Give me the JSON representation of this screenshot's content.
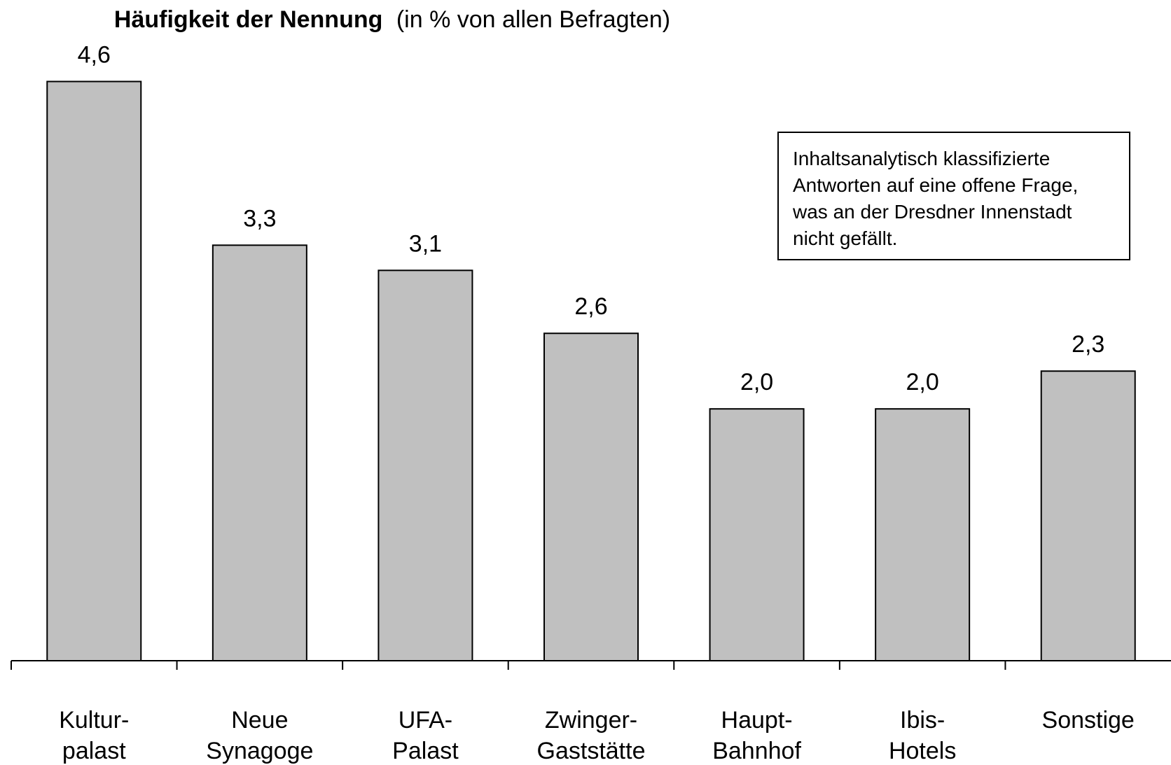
{
  "chart_data": {
    "type": "bar",
    "title": "Häufigkeit der Nennung",
    "subtitle": "(in % von allen Befragten)",
    "annotation": "Inhaltsanalytisch klassifizierte\nAntworten auf eine offene Frage,\nwas an der Dresdner Innenstadt\nnicht gefällt.",
    "categories": [
      "Kultur-\npalast",
      "Neue\nSynagoge",
      "UFA-\nPalast",
      "Zwinger-\nGaststätte",
      "Haupt-\nBahnhof",
      "Ibis-\nHotels",
      "Sonstige"
    ],
    "values": [
      4.6,
      3.3,
      3.1,
      2.6,
      2.0,
      2.0,
      2.3
    ],
    "value_labels": [
      "4,6",
      "3,3",
      "3,1",
      "2,6",
      "2,0",
      "2,0",
      "2,3"
    ],
    "color": "#c0c0c0",
    "ylim": [
      0,
      5
    ],
    "grid": false
  }
}
